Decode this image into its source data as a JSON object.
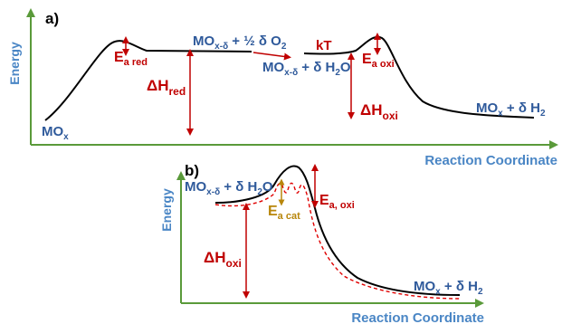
{
  "colors": {
    "axis": "#5a9a3a",
    "curve": "#000000",
    "enthalpy": "#c00000",
    "species": "#2f5a9b",
    "axis_label": "#4a86c5",
    "catalyst": "#b8860b",
    "catalyzed_path": "#e00000"
  },
  "panel_a": {
    "label": "a)",
    "y_axis": "Energy",
    "x_axis": "Reaction Coordinate",
    "mo_x_start": {
      "base": "MO",
      "sub": "x"
    },
    "reduced_state": {
      "t1": "MO",
      "sub": "x-δ",
      "t2": " + ½ δ O",
      "sub2": "2"
    },
    "kt": "kT",
    "after_kt": {
      "t1": "MO",
      "sub": "x-δ",
      "t2": " + δ H",
      "sub2": "2",
      "t3": "O"
    },
    "ea_red": {
      "base": "E",
      "sub": "a red"
    },
    "ea_oxi": {
      "base": "E",
      "sub": "a oxi"
    },
    "dh_red": {
      "base": "ΔH",
      "sub": "red"
    },
    "dh_oxi": {
      "base": "ΔH",
      "sub": "oxi"
    },
    "product": {
      "t1": "MO",
      "sub": "x",
      "t2": " + δ H",
      "sub2": "2"
    }
  },
  "panel_b": {
    "label": "b)",
    "y_axis": "Energy",
    "x_axis": "Reaction Coordinate",
    "reactant": {
      "t1": "MO",
      "sub": "x-δ",
      "t2": " + δ H",
      "sub2": "2",
      "t3": "O"
    },
    "ea_cat": {
      "base": "E",
      "sub": "a cat"
    },
    "ea_oxi": {
      "base": "E",
      "sub": "a, oxi"
    },
    "dh_oxi": {
      "base": "ΔH",
      "sub": "oxi"
    },
    "product": {
      "t1": "MO",
      "sub": "x",
      "t2": " + δ H",
      "sub2": "2"
    }
  }
}
